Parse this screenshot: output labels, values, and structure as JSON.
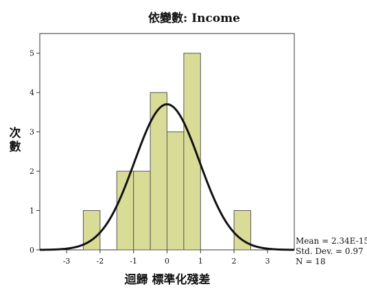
{
  "chart_data": {
    "type": "bar",
    "title": "依變數: Income",
    "xlabel": "迴歸 標準化殘差",
    "ylabel": "次數",
    "bins": [
      {
        "start": -2.5,
        "end": -2.0,
        "value": 1
      },
      {
        "start": -2.0,
        "end": -1.5,
        "value": 0
      },
      {
        "start": -1.5,
        "end": -1.0,
        "value": 2
      },
      {
        "start": -1.0,
        "end": -0.5,
        "value": 2
      },
      {
        "start": -0.5,
        "end": 0.0,
        "value": 4
      },
      {
        "start": 0.0,
        "end": 0.5,
        "value": 3
      },
      {
        "start": 0.5,
        "end": 1.0,
        "value": 5
      },
      {
        "start": 1.0,
        "end": 1.5,
        "value": 0
      },
      {
        "start": 1.5,
        "end": 2.0,
        "value": 0
      },
      {
        "start": 2.0,
        "end": 2.5,
        "value": 1
      }
    ],
    "xlim": [
      -3.8,
      3.8
    ],
    "ylim": [
      0,
      5.5
    ],
    "x_ticks": [
      "-3",
      "-2",
      "-1",
      "0",
      "1",
      "2",
      "3"
    ],
    "y_ticks": [
      "0",
      "1",
      "2",
      "3",
      "4",
      "5"
    ],
    "normal_curve": {
      "mean": 0,
      "std": 0.97,
      "n": 18,
      "bin_width": 0.5
    },
    "stats": {
      "mean": "Mean = 2.34E-15",
      "std": "Std. Dev. = 0.97",
      "n": "N = 18"
    },
    "grid": false,
    "colors": {
      "bar_fill": "#d9dc96",
      "bar_stroke": "#555555",
      "curve": "#111111",
      "frame": "#333333"
    }
  }
}
